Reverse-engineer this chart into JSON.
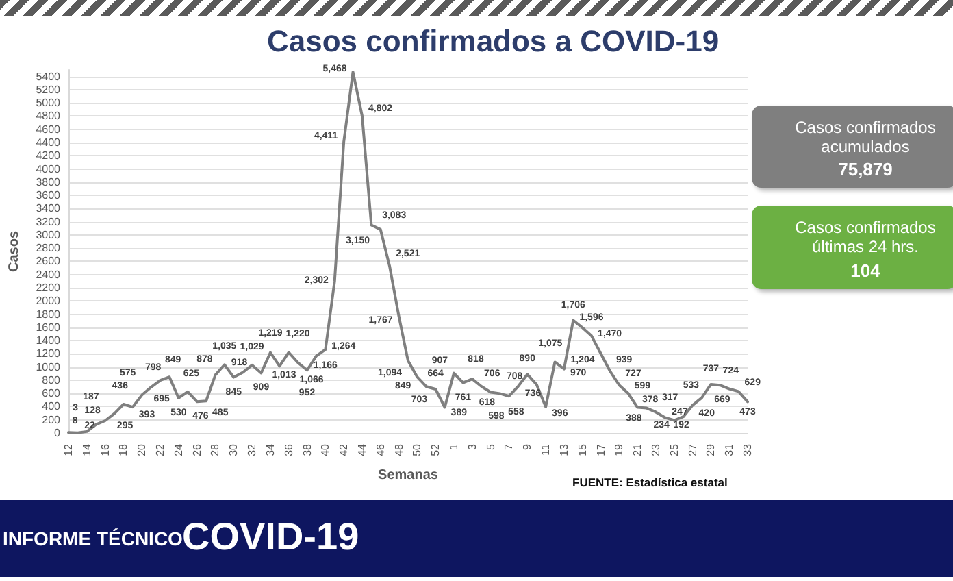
{
  "chart_data": {
    "type": "line",
    "title": "Casos confirmados a COVID-19",
    "xlabel": "Semanas",
    "ylabel": "Casos",
    "categories": [
      "12",
      null,
      "14",
      null,
      "16",
      null,
      "18",
      null,
      "20",
      null,
      "22",
      null,
      "24",
      null,
      "26",
      null,
      "28",
      null,
      "30",
      null,
      "32",
      null,
      "34",
      null,
      "36",
      null,
      "38",
      null,
      "40",
      null,
      "42",
      null,
      "44",
      null,
      "46",
      null,
      "48",
      null,
      "50",
      null,
      "52",
      null,
      "1",
      null,
      "3",
      null,
      "5",
      null,
      "7",
      null,
      "9",
      null,
      "11",
      null,
      "13",
      null,
      "15",
      null,
      "17",
      null,
      "19",
      null,
      "21",
      null,
      "23",
      null,
      "25",
      null,
      "27",
      null,
      "29",
      null,
      "31",
      null,
      "33"
    ],
    "values": [
      8,
      3,
      22,
      128,
      187,
      295,
      436,
      393,
      575,
      695,
      798,
      849,
      530,
      625,
      476,
      485,
      878,
      1035,
      845,
      918,
      1029,
      909,
      1219,
      1013,
      1220,
      1066,
      952,
      1166,
      1264,
      2302,
      4411,
      5468,
      4802,
      3150,
      3083,
      2521,
      1767,
      1094,
      849,
      703,
      664,
      389,
      907,
      761,
      818,
      706,
      618,
      598,
      558,
      708,
      890,
      736,
      396,
      1075,
      970,
      1706,
      1596,
      1470,
      1204,
      939,
      727,
      599,
      388,
      378,
      317,
      234,
      192,
      247,
      420,
      533,
      737,
      724,
      669,
      629,
      473
    ],
    "value_labels": [
      "8",
      "3",
      "22",
      "128",
      "187",
      "295",
      "436",
      "393",
      "575",
      "695",
      "798",
      "849",
      "530",
      "625",
      "476",
      "485",
      "878",
      "1,035",
      "845",
      "918",
      "1,029",
      "909",
      "1,219",
      "1,013",
      "1,220",
      "1,066",
      "952",
      "1,166",
      "1,264",
      "2,302",
      "4,411",
      "5,468",
      "4,802",
      "3,150",
      "3,083",
      "2,521",
      "1,767",
      "1,094",
      "849",
      "703",
      "664",
      "389",
      "907",
      "761",
      "818",
      "706",
      "618",
      "598",
      "558",
      "708",
      "890",
      "736",
      "396",
      "1,075",
      "970",
      "1,706",
      "1,596",
      "1,470",
      "1,204",
      "939",
      "727",
      "599",
      "388",
      "378",
      "317",
      "234",
      "192",
      "247",
      "420",
      "533",
      "737",
      "724",
      "669",
      "629",
      "473"
    ],
    "color": "#7f7f7f",
    "ylim": [
      0,
      5500
    ],
    "yticks": [
      0,
      200,
      400,
      600,
      800,
      1000,
      1200,
      1400,
      1600,
      1800,
      2000,
      2200,
      2400,
      2600,
      2800,
      3000,
      3200,
      3400,
      3600,
      3800,
      4000,
      4200,
      4400,
      4600,
      4800,
      5000,
      5200,
      5400
    ],
    "grid": "y",
    "annotations": [
      "FUENTE: Estadística estatal",
      "Casos confirmados acumulados",
      "75,879",
      "Casos confirmados últimas 24 hrs.",
      "104",
      "INFORME TÉCNICO",
      "COVID-19"
    ]
  }
}
